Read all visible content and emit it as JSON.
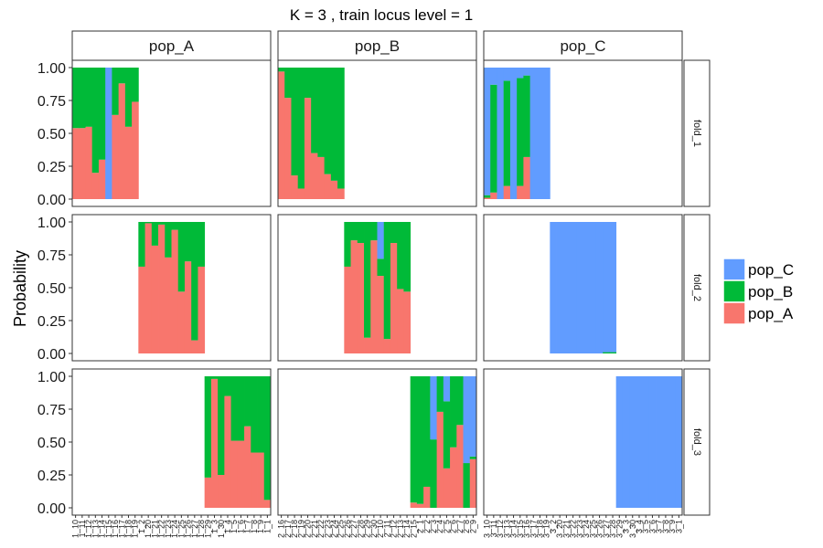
{
  "chart_data": {
    "type": "bar",
    "subtype": "stacked-100-faceted",
    "title": "K = 3  ,  train locus level = 1",
    "ylabel": "Probability",
    "xlabel": "",
    "ylim": [
      0,
      1
    ],
    "yticks": [
      "0.00",
      "0.25",
      "0.50",
      "0.75",
      "1.00"
    ],
    "grid": false,
    "legend_position": "right",
    "legend": [
      {
        "name": "pop_C",
        "color": "#619CFF"
      },
      {
        "name": "pop_B",
        "color": "#00BA38"
      },
      {
        "name": "pop_A",
        "color": "#F8766D"
      }
    ],
    "col_facets": [
      "pop_A",
      "pop_B",
      "pop_C"
    ],
    "row_facets": [
      "fold_1",
      "fold_2",
      "fold_3"
    ],
    "stack_order_bottom_to_top": [
      "pop_A",
      "pop_B",
      "pop_C"
    ],
    "columns": [
      {
        "facet": "pop_A",
        "x_tick_labels": [
          "1_10",
          "1_11",
          "1_12",
          "1_13",
          "1_14",
          "1_15",
          "1_16",
          "1_17",
          "1_18",
          "1_19",
          "1_2",
          "1_20",
          "1_21",
          "1_22",
          "1_23",
          "1_24",
          "1_25",
          "1_26",
          "1_27",
          "1_28",
          "1_29",
          "1_3",
          "1_30",
          "1_4",
          "1_5",
          "1_6",
          "1_7",
          "1_8",
          "1_9",
          "1_1"
        ],
        "folds": [
          {
            "fold": "fold_1",
            "start": 0,
            "bars": [
              {
                "A": 0.54,
                "B": 0.46,
                "C": 0.0
              },
              {
                "A": 0.54,
                "B": 0.46,
                "C": 0.0
              },
              {
                "A": 0.55,
                "B": 0.45,
                "C": 0.0
              },
              {
                "A": 0.2,
                "B": 0.8,
                "C": 0.0
              },
              {
                "A": 0.3,
                "B": 0.7,
                "C": 0.0
              },
              {
                "A": 0.0,
                "B": 0.0,
                "C": 1.0
              },
              {
                "A": 0.64,
                "B": 0.36,
                "C": 0.0
              },
              {
                "A": 0.88,
                "B": 0.12,
                "C": 0.0
              },
              {
                "A": 0.55,
                "B": 0.45,
                "C": 0.0
              },
              {
                "A": 0.74,
                "B": 0.26,
                "C": 0.0
              }
            ]
          },
          {
            "fold": "fold_2",
            "start": 10,
            "bars": [
              {
                "A": 0.66,
                "B": 0.34,
                "C": 0.0
              },
              {
                "A": 0.99,
                "B": 0.01,
                "C": 0.0
              },
              {
                "A": 0.82,
                "B": 0.18,
                "C": 0.0
              },
              {
                "A": 0.98,
                "B": 0.02,
                "C": 0.0
              },
              {
                "A": 0.73,
                "B": 0.27,
                "C": 0.0
              },
              {
                "A": 0.94,
                "B": 0.06,
                "C": 0.0
              },
              {
                "A": 0.47,
                "B": 0.53,
                "C": 0.0
              },
              {
                "A": 0.7,
                "B": 0.3,
                "C": 0.0
              },
              {
                "A": 0.1,
                "B": 0.9,
                "C": 0.0
              },
              {
                "A": 0.66,
                "B": 0.34,
                "C": 0.0
              }
            ]
          },
          {
            "fold": "fold_3",
            "start": 20,
            "bars": [
              {
                "A": 0.23,
                "B": 0.77,
                "C": 0.0
              },
              {
                "A": 0.98,
                "B": 0.02,
                "C": 0.0
              },
              {
                "A": 0.25,
                "B": 0.75,
                "C": 0.0
              },
              {
                "A": 0.85,
                "B": 0.15,
                "C": 0.0
              },
              {
                "A": 0.51,
                "B": 0.49,
                "C": 0.0
              },
              {
                "A": 0.51,
                "B": 0.49,
                "C": 0.0
              },
              {
                "A": 0.62,
                "B": 0.38,
                "C": 0.0
              },
              {
                "A": 0.42,
                "B": 0.58,
                "C": 0.0
              },
              {
                "A": 0.42,
                "B": 0.58,
                "C": 0.0
              },
              {
                "A": 0.06,
                "B": 0.94,
                "C": 0.0
              }
            ]
          }
        ]
      },
      {
        "facet": "pop_B",
        "x_tick_labels": [
          "2_16",
          "2_17",
          "2_18",
          "2_19",
          "2_20",
          "2_21",
          "2_22",
          "2_23",
          "2_24",
          "2_25",
          "2_26",
          "2_27",
          "2_28",
          "2_29",
          "2_30",
          "2_10",
          "2_11",
          "2_12",
          "2_13",
          "2_14",
          "2_15",
          "2_1",
          "2_2",
          "2_3",
          "2_4",
          "2_5",
          "2_6",
          "2_7",
          "2_8",
          "2_9"
        ],
        "folds": [
          {
            "fold": "fold_1",
            "start": 0,
            "bars": [
              {
                "A": 0.97,
                "B": 0.03,
                "C": 0.0
              },
              {
                "A": 0.77,
                "B": 0.23,
                "C": 0.0
              },
              {
                "A": 0.18,
                "B": 0.82,
                "C": 0.0
              },
              {
                "A": 0.08,
                "B": 0.92,
                "C": 0.0
              },
              {
                "A": 0.77,
                "B": 0.23,
                "C": 0.0
              },
              {
                "A": 0.35,
                "B": 0.65,
                "C": 0.0
              },
              {
                "A": 0.32,
                "B": 0.68,
                "C": 0.0
              },
              {
                "A": 0.19,
                "B": 0.81,
                "C": 0.0
              },
              {
                "A": 0.14,
                "B": 0.86,
                "C": 0.0
              },
              {
                "A": 0.08,
                "B": 0.92,
                "C": 0.0
              }
            ]
          },
          {
            "fold": "fold_2",
            "start": 10,
            "bars": [
              {
                "A": 0.66,
                "B": 0.34,
                "C": 0.0
              },
              {
                "A": 0.86,
                "B": 0.14,
                "C": 0.0
              },
              {
                "A": 0.84,
                "B": 0.16,
                "C": 0.0
              },
              {
                "A": 0.12,
                "B": 0.88,
                "C": 0.0
              },
              {
                "A": 0.86,
                "B": 0.14,
                "C": 0.0
              },
              {
                "A": 0.59,
                "B": 0.13,
                "C": 0.28
              },
              {
                "A": 0.11,
                "B": 0.89,
                "C": 0.0
              },
              {
                "A": 0.84,
                "B": 0.16,
                "C": 0.0
              },
              {
                "A": 0.49,
                "B": 0.51,
                "C": 0.0
              },
              {
                "A": 0.47,
                "B": 0.53,
                "C": 0.0
              }
            ]
          },
          {
            "fold": "fold_3",
            "start": 20,
            "bars": [
              {
                "A": 0.04,
                "B": 0.96,
                "C": 0.0
              },
              {
                "A": 0.03,
                "B": 0.97,
                "C": 0.0
              },
              {
                "A": 0.16,
                "B": 0.84,
                "C": 0.0
              },
              {
                "A": 0.0,
                "B": 0.52,
                "C": 0.48
              },
              {
                "A": 0.73,
                "B": 0.27,
                "C": 0.0
              },
              {
                "A": 0.3,
                "B": 0.51,
                "C": 0.19
              },
              {
                "A": 0.46,
                "B": 0.54,
                "C": 0.0
              },
              {
                "A": 0.63,
                "B": 0.37,
                "C": 0.0
              },
              {
                "A": 0.0,
                "B": 0.34,
                "C": 0.66
              },
              {
                "A": 0.37,
                "B": 0.02,
                "C": 0.61
              }
            ]
          }
        ]
      },
      {
        "facet": "pop_C",
        "x_tick_labels": [
          "3_10",
          "3_11",
          "3_12",
          "3_13",
          "3_14",
          "3_15",
          "3_16",
          "3_17",
          "3_18",
          "3_19",
          "3_2",
          "3_20",
          "3_21",
          "3_22",
          "3_23",
          "3_24",
          "3_25",
          "3_26",
          "3_27",
          "3_28",
          "3_29",
          "3_3",
          "3_30",
          "3_4",
          "3_5",
          "3_6",
          "3_7",
          "3_8",
          "3_9",
          "3_1"
        ],
        "folds": [
          {
            "fold": "fold_1",
            "start": 0,
            "bars": [
              {
                "A": 0.01,
                "B": 0.02,
                "C": 0.97
              },
              {
                "A": 0.05,
                "B": 0.82,
                "C": 0.13
              },
              {
                "A": 0.0,
                "B": 0.0,
                "C": 1.0
              },
              {
                "A": 0.1,
                "B": 0.8,
                "C": 0.1
              },
              {
                "A": 0.0,
                "B": 0.0,
                "C": 1.0
              },
              {
                "A": 0.1,
                "B": 0.82,
                "C": 0.08
              },
              {
                "A": 0.32,
                "B": 0.62,
                "C": 0.06
              },
              {
                "A": 0.0,
                "B": 0.0,
                "C": 1.0
              },
              {
                "A": 0.0,
                "B": 0.0,
                "C": 1.0
              },
              {
                "A": 0.0,
                "B": 0.0,
                "C": 1.0
              }
            ]
          },
          {
            "fold": "fold_2",
            "start": 10,
            "bars": [
              {
                "A": 0.0,
                "B": 0.0,
                "C": 1.0
              },
              {
                "A": 0.0,
                "B": 0.0,
                "C": 1.0
              },
              {
                "A": 0.0,
                "B": 0.0,
                "C": 1.0
              },
              {
                "A": 0.0,
                "B": 0.0,
                "C": 1.0
              },
              {
                "A": 0.0,
                "B": 0.0,
                "C": 1.0
              },
              {
                "A": 0.0,
                "B": 0.0,
                "C": 1.0
              },
              {
                "A": 0.0,
                "B": 0.0,
                "C": 1.0
              },
              {
                "A": 0.0,
                "B": 0.0,
                "C": 1.0
              },
              {
                "A": 0.0,
                "B": 0.01,
                "C": 0.99
              },
              {
                "A": 0.0,
                "B": 0.01,
                "C": 0.99
              }
            ]
          },
          {
            "fold": "fold_3",
            "start": 20,
            "bars": [
              {
                "A": 0.0,
                "B": 0.0,
                "C": 1.0
              },
              {
                "A": 0.0,
                "B": 0.0,
                "C": 1.0
              },
              {
                "A": 0.0,
                "B": 0.0,
                "C": 1.0
              },
              {
                "A": 0.0,
                "B": 0.0,
                "C": 1.0
              },
              {
                "A": 0.0,
                "B": 0.0,
                "C": 1.0
              },
              {
                "A": 0.0,
                "B": 0.0,
                "C": 1.0
              },
              {
                "A": 0.0,
                "B": 0.0,
                "C": 1.0
              },
              {
                "A": 0.0,
                "B": 0.0,
                "C": 1.0
              },
              {
                "A": 0.0,
                "B": 0.0,
                "C": 1.0
              },
              {
                "A": 0.0,
                "B": 0.0,
                "C": 1.0
              }
            ]
          }
        ]
      }
    ]
  }
}
